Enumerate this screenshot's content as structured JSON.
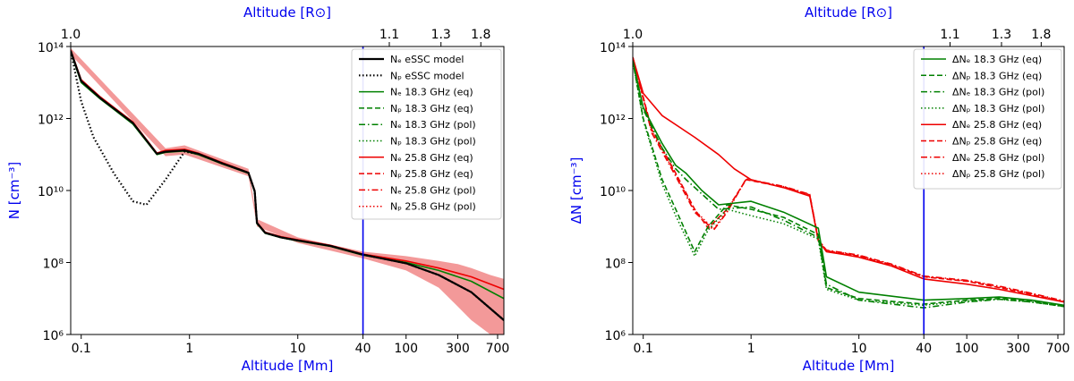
{
  "chart_data": [
    {
      "type": "line",
      "panel": "left",
      "top_xlabel": "Altitude [R⊙]",
      "xlabel": "Altitude [Mm]",
      "ylabel": "N [cm⁻³]",
      "xscale": "log",
      "yscale": "log",
      "xlim": [
        0.08,
        800
      ],
      "ylim": [
        1000000,
        100000000000000
      ],
      "x_ticks": [
        0.1,
        1,
        10,
        40,
        100,
        300,
        700
      ],
      "x_tick_labels": [
        "0.1",
        "1",
        "10",
        "40",
        "100",
        "300",
        "700"
      ],
      "y_ticks": [
        1000000,
        100000000,
        10000000000,
        1000000000000,
        100000000000000
      ],
      "y_tick_labels": [
        "10⁶",
        "10⁸",
        "10¹⁰",
        "10¹²",
        "10¹⁴"
      ],
      "top_ticks": [
        0.08,
        70,
        210,
        490
      ],
      "top_tick_labels": [
        "1.0",
        "1.1",
        "1.3",
        "1.8"
      ],
      "vline_x": 40,
      "legend_position": "upper-right",
      "legend": [
        {
          "label": "Nₑ eSSC model",
          "color": "#000000",
          "dash": "solid",
          "width": 2.2
        },
        {
          "label": "Nₚ eSSC model",
          "color": "#000000",
          "dash": "dotted",
          "width": 2.2
        },
        {
          "label": "Nₑ 18.3 GHz (eq)",
          "color": "#008000",
          "dash": "solid",
          "width": 1.5
        },
        {
          "label": "Nₚ 18.3 GHz (eq)",
          "color": "#008000",
          "dash": "dashed",
          "width": 1.5
        },
        {
          "label": "Nₑ 18.3 GHz (pol)",
          "color": "#008000",
          "dash": "dashdot",
          "width": 1.5
        },
        {
          "label": "Nₚ 18.3 GHz (pol)",
          "color": "#008000",
          "dash": "dotted",
          "width": 1.5
        },
        {
          "label": "Nₑ 25.8 GHz (eq)",
          "color": "#ee0000",
          "dash": "solid",
          "width": 1.5
        },
        {
          "label": "Nₚ 25.8 GHz (eq)",
          "color": "#ee0000",
          "dash": "dashed",
          "width": 1.5
        },
        {
          "label": "Nₑ 25.8 GHz (pol)",
          "color": "#ee0000",
          "dash": "dashdot",
          "width": 1.5
        },
        {
          "label": "Nₚ 25.8 GHz (pol)",
          "color": "#ee0000",
          "dash": "dotted",
          "width": 1.5
        }
      ],
      "series": [
        {
          "name": "Ne 25.8 GHz (eq)",
          "color": "#ee0000",
          "dash": "solid",
          "width": 1.6,
          "x": [
            0.08,
            0.1,
            0.15,
            0.3,
            0.5,
            0.6,
            0.9,
            1.2,
            2,
            3.5,
            4,
            4.2,
            5,
            7,
            10,
            20,
            40,
            100,
            200,
            400,
            800
          ],
          "y": [
            80000000000000,
            12000000000000,
            4000000000000,
            800000000000,
            110000000000,
            130000000000,
            140000000000,
            110000000000,
            60000000000,
            32000000000,
            10000000000,
            1300000000,
            700000000,
            520000000,
            430000000,
            300000000,
            170000000,
            110000000,
            70000000,
            40000000,
            18000000
          ]
        },
        {
          "name": "Ne 18.3 GHz (eq)",
          "color": "#008000",
          "dash": "solid",
          "width": 1.6,
          "x": [
            0.08,
            0.1,
            0.15,
            0.3,
            0.5,
            0.6,
            0.9,
            1.2,
            2,
            3.5,
            4,
            4.2,
            5,
            7,
            10,
            20,
            40,
            100,
            200,
            400,
            800
          ],
          "y": [
            70000000000000,
            10000000000000,
            3500000000000,
            700000000000,
            100000000000,
            115000000000,
            125000000000,
            100000000000,
            55000000000,
            30000000000,
            9000000000,
            1200000000,
            650000000,
            490000000,
            400000000,
            280000000,
            160000000,
            100000000,
            60000000,
            30000000,
            10000000
          ]
        },
        {
          "name": "Ne eSSC model",
          "color": "#000000",
          "dash": "solid",
          "width": 2.2,
          "x": [
            0.08,
            0.1,
            0.15,
            0.3,
            0.5,
            0.6,
            0.9,
            1.2,
            2,
            3.5,
            4,
            4.2,
            5,
            7,
            10,
            20,
            40,
            100,
            200,
            400,
            800
          ],
          "y": [
            75000000000000,
            11000000000000,
            3700000000000,
            750000000000,
            105000000000,
            120000000000,
            130000000000,
            105000000000,
            57000000000,
            31000000000,
            9500000000,
            1250000000,
            670000000,
            500000000,
            410000000,
            290000000,
            165000000,
            95000000,
            45000000,
            15000000,
            2500000
          ]
        },
        {
          "name": "Np eSSC model",
          "color": "#000000",
          "dash": "dotted",
          "width": 2.2,
          "x": [
            0.08,
            0.1,
            0.13,
            0.2,
            0.3,
            0.4,
            0.6,
            0.9,
            1.2,
            2,
            3.5,
            4,
            4.2,
            5,
            7,
            10,
            20,
            40,
            100,
            200,
            400,
            800
          ],
          "y": [
            75000000000000,
            3000000000000,
            300000000000,
            30000000000,
            5000000000,
            4000000000,
            20000000000,
            120000000000,
            105000000000,
            57000000000,
            31000000000,
            9500000000,
            1250000000,
            670000000,
            500000000,
            410000000,
            290000000,
            165000000,
            95000000,
            45000000,
            15000000,
            2500000
          ]
        }
      ],
      "bands": [
        {
          "name": "25.8 GHz uncertainty",
          "color": "#f08080",
          "opacity": 0.8,
          "x": [
            0.08,
            0.6,
            0.9,
            3.5,
            4.2,
            10,
            40,
            100,
            200,
            300,
            400,
            600,
            800
          ],
          "upper": [
            90000000000000,
            150000000000,
            180000000000,
            40000000000,
            1600000000,
            500000000,
            200000000,
            150000000,
            110000000,
            90000000,
            70000000,
            45000000,
            35000000
          ],
          "lower": [
            60000000000000,
            90000000000,
            100000000000,
            25000000000,
            1000000000,
            350000000,
            130000000,
            60000000,
            20000000,
            6000000,
            2500000,
            1000000,
            1000000
          ]
        }
      ]
    },
    {
      "type": "line",
      "panel": "right",
      "top_xlabel": "Altitude [R⊙]",
      "xlabel": "Altitude [Mm]",
      "ylabel": "ΔN [cm⁻³]",
      "xscale": "log",
      "yscale": "log",
      "xlim": [
        0.08,
        800
      ],
      "ylim": [
        1000000,
        100000000000000
      ],
      "x_ticks": [
        0.1,
        1,
        10,
        40,
        100,
        300,
        700
      ],
      "x_tick_labels": [
        "0.1",
        "1",
        "10",
        "40",
        "100",
        "300",
        "700"
      ],
      "y_ticks": [
        1000000,
        100000000,
        10000000000,
        1000000000000,
        100000000000000
      ],
      "y_tick_labels": [
        "10⁶",
        "10⁸",
        "10¹⁰",
        "10¹²",
        "10¹⁴"
      ],
      "top_ticks": [
        0.08,
        70,
        210,
        490
      ],
      "top_tick_labels": [
        "1.0",
        "1.1",
        "1.3",
        "1.8"
      ],
      "vline_x": 40,
      "legend_position": "upper-right",
      "legend": [
        {
          "label": "ΔNₑ 18.3 GHz (eq)",
          "color": "#008000",
          "dash": "solid",
          "width": 1.5
        },
        {
          "label": "ΔNₚ 18.3 GHz (eq)",
          "color": "#008000",
          "dash": "dashed",
          "width": 1.5
        },
        {
          "label": "ΔNₑ 18.3 GHz (pol)",
          "color": "#008000",
          "dash": "dashdot",
          "width": 1.5
        },
        {
          "label": "ΔNₚ 18.3 GHz (pol)",
          "color": "#008000",
          "dash": "dotted",
          "width": 1.5
        },
        {
          "label": "ΔNₑ 25.8 GHz (eq)",
          "color": "#ee0000",
          "dash": "solid",
          "width": 1.5
        },
        {
          "label": "ΔNₚ 25.8 GHz (eq)",
          "color": "#ee0000",
          "dash": "dashed",
          "width": 1.5
        },
        {
          "label": "ΔNₑ 25.8 GHz (pol)",
          "color": "#ee0000",
          "dash": "dashdot",
          "width": 1.5
        },
        {
          "label": "ΔNₚ 25.8 GHz (pol)",
          "color": "#ee0000",
          "dash": "dotted",
          "width": 1.5
        }
      ],
      "series": [
        {
          "name": "ΔNe 25.8 GHz (eq)",
          "color": "#ee0000",
          "dash": "solid",
          "width": 1.6,
          "x": [
            0.08,
            0.1,
            0.15,
            0.3,
            0.5,
            0.7,
            1,
            2,
            3.5,
            4.2,
            5,
            7,
            10,
            20,
            40,
            100,
            200,
            400,
            800
          ],
          "y": [
            50000000000000,
            5000000000000,
            1200000000000,
            300000000000,
            100000000000,
            40000000000,
            20000000000,
            12000000000,
            7000000000,
            400000000,
            200000000,
            170000000,
            140000000,
            80000000,
            35000000,
            25000000,
            18000000,
            12000000,
            8000000
          ]
        },
        {
          "name": "ΔNp 25.8 GHz (eq)",
          "color": "#ee0000",
          "dash": "dashed",
          "width": 1.6,
          "x": [
            0.08,
            0.12,
            0.2,
            0.3,
            0.4,
            0.6,
            0.9,
            2,
            3.5,
            4.2,
            5,
            7,
            10,
            20,
            40,
            100,
            200,
            400,
            800
          ],
          "y": [
            50000000000000,
            500000000000,
            30000000000,
            3000000000,
            900000000,
            3000000000,
            20000000000,
            12500000000,
            7500000000,
            420000000,
            210000000,
            180000000,
            150000000,
            85000000,
            40000000,
            30000000,
            20000000,
            13000000,
            8000000
          ]
        },
        {
          "name": "ΔNe 25.8 GHz (pol)",
          "color": "#ee0000",
          "dash": "dashdot",
          "width": 1.6,
          "x": [
            0.08,
            0.12,
            0.2,
            0.3,
            0.45,
            0.6,
            0.9,
            2,
            3.5,
            4.2,
            5,
            7,
            10,
            20,
            40,
            100,
            200,
            400,
            800
          ],
          "y": [
            50000000000000,
            400000000000,
            25000000000,
            2500000000,
            800000000,
            2500000000,
            21000000000,
            13000000000,
            7800000000,
            430000000,
            220000000,
            190000000,
            160000000,
            90000000,
            42000000,
            32000000,
            22000000,
            14000000,
            8500000
          ]
        },
        {
          "name": "ΔNp 25.8 GHz (pol)",
          "color": "#ee0000",
          "dash": "dotted",
          "width": 1.6,
          "x": [
            0.08,
            0.12,
            0.2,
            0.3,
            0.45,
            0.6,
            0.9,
            2,
            3.5,
            4.2,
            5,
            7,
            10,
            20,
            40,
            100,
            200,
            400,
            800
          ],
          "y": [
            50000000000000,
            450000000000,
            28000000000,
            2800000000,
            850000000,
            2800000000,
            20500000000,
            12800000000,
            7600000000,
            425000000,
            215000000,
            185000000,
            155000000,
            88000000,
            41000000,
            31000000,
            21000000,
            13500000,
            8200000
          ]
        },
        {
          "name": "ΔNe 18.3 GHz (eq)",
          "color": "#008000",
          "dash": "solid",
          "width": 1.6,
          "x": [
            0.08,
            0.1,
            0.15,
            0.2,
            0.25,
            0.35,
            0.5,
            1,
            2,
            4.2,
            5,
            10,
            40,
            100,
            200,
            400,
            800
          ],
          "y": [
            40000000000000,
            2000000000000,
            200000000000,
            50000000000,
            30000000000,
            10000000000,
            4000000000,
            5000000000,
            2500000000,
            900000000,
            40000000,
            15000000,
            9000000,
            10000000,
            11000000,
            9000000,
            6500000
          ]
        },
        {
          "name": "ΔNp 18.3 GHz (eq)",
          "color": "#008000",
          "dash": "dashed",
          "width": 1.6,
          "x": [
            0.08,
            0.1,
            0.15,
            0.2,
            0.3,
            0.4,
            0.6,
            1,
            2,
            4.2,
            5,
            10,
            40,
            100,
            200,
            400,
            800
          ],
          "y": [
            40000000000000,
            1000000000000,
            20000000000,
            3000000000,
            200000000,
            1000000000,
            4000000000,
            3000000000,
            1800000000,
            600000000,
            20000000,
            10000000,
            7000000,
            9000000,
            10000000,
            8500000,
            6000000
          ]
        },
        {
          "name": "ΔNe 18.3 GHz (pol)",
          "color": "#008000",
          "dash": "dashdot",
          "width": 1.6,
          "x": [
            0.08,
            0.1,
            0.15,
            0.2,
            0.25,
            0.35,
            0.5,
            1,
            2,
            4.2,
            5,
            10,
            40,
            100,
            200,
            400,
            800
          ],
          "y": [
            40000000000000,
            1800000000000,
            150000000000,
            40000000000,
            20000000000,
            8000000000,
            3000000000,
            3500000000,
            1500000000,
            500000000,
            25000000,
            9000000,
            5500000,
            8000000,
            9500000,
            8000000,
            6000000
          ]
        },
        {
          "name": "ΔNp 18.3 GHz (pol)",
          "color": "#008000",
          "dash": "dotted",
          "width": 1.6,
          "x": [
            0.08,
            0.1,
            0.15,
            0.2,
            0.3,
            0.4,
            0.6,
            1,
            2,
            4.2,
            5,
            10,
            40,
            100,
            200,
            400,
            800
          ],
          "y": [
            40000000000000,
            900000000000,
            15000000000,
            2000000000,
            150000000,
            800000000,
            3000000000,
            2000000000,
            1200000000,
            450000000,
            18000000,
            9000000,
            6500000,
            8500000,
            9500000,
            8000000,
            6000000
          ]
        }
      ]
    }
  ]
}
